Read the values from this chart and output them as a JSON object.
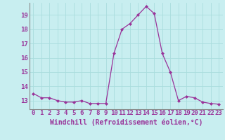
{
  "x": [
    0,
    1,
    2,
    3,
    4,
    5,
    6,
    7,
    8,
    9,
    10,
    11,
    12,
    13,
    14,
    15,
    16,
    17,
    18,
    19,
    20,
    21,
    22,
    23
  ],
  "y": [
    13.5,
    13.2,
    13.2,
    13.0,
    12.9,
    12.9,
    13.0,
    12.8,
    12.8,
    12.8,
    16.3,
    18.0,
    18.4,
    19.0,
    19.6,
    19.1,
    16.3,
    15.0,
    13.0,
    13.3,
    13.2,
    12.9,
    12.8,
    12.75
  ],
  "line_color": "#993399",
  "marker": "D",
  "marker_size": 2,
  "bg_color": "#c8eef0",
  "grid_color": "#aadddd",
  "tick_color": "#993399",
  "label_color": "#993399",
  "ylabel_ticks": [
    13,
    14,
    15,
    16,
    17,
    18,
    19
  ],
  "xlabel": "Windchill (Refroidissement éolien,°C)",
  "ylim": [
    12.4,
    19.85
  ],
  "xlim": [
    -0.5,
    23.5
  ],
  "xlabel_fontsize": 7,
  "tick_fontsize": 6.5,
  "spine_color": "#888888"
}
